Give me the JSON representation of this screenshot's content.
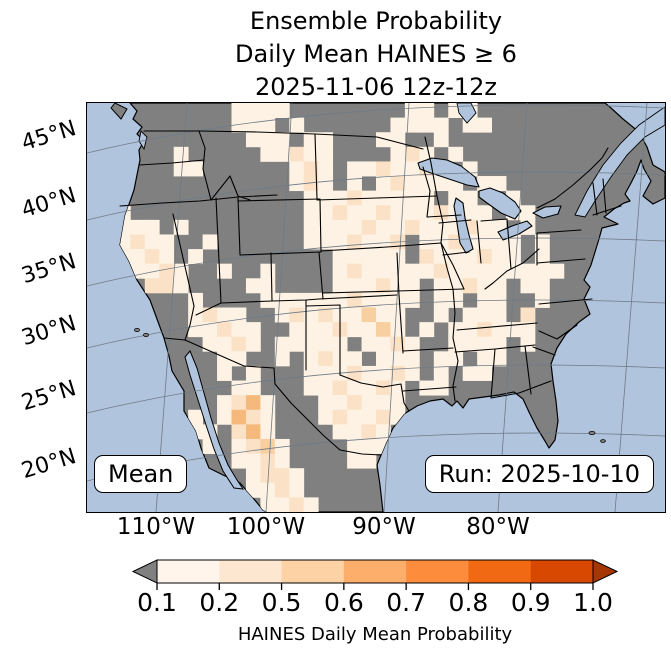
{
  "title": {
    "lines": [
      "Ensemble Probability",
      "Daily Mean HAINES ≥ 6",
      "2025-11-06 12z-12z"
    ]
  },
  "map": {
    "overlay_boxes": {
      "stat": "Mean",
      "run": "Run: 2025-10-10"
    },
    "axis": {
      "lat_labels": [
        "45°N",
        "40°N",
        "35°N",
        "30°N",
        "25°N",
        "20°N"
      ],
      "lon_labels": [
        "110°W",
        "100°W",
        "90°W",
        "80°W"
      ]
    },
    "colors": {
      "ocean": "#b0c4de",
      "masked_land": "#808080",
      "coastline": "#000000",
      "graticule": "#6f7a85"
    },
    "probability_grid": {
      "cols": 40,
      "rows": 28,
      "palette": {
        "1": "#fdf2e3",
        "2": "#fbe2c6",
        "3": "#f8cfa0",
        "4": "#f5b97b"
      },
      "legend": {
        ".": "< 0.1 (masked gray)",
        "1": "0.1-0.2",
        "2": "0.2-0.5",
        "3": "0.5-0.6",
        "4": "0.6-0.7"
      },
      "cells": [
        "..........1111........11.11.............",
        "..........111.1......1111.11............",
        "...........111.11...11..1...............",
        "......1.....11211....121.1..............",
        "......11......121.1121121.1.............",
        "..............121.1.121111.11...........",
        "...............111211111.11..1..........",
        "..1............1121121112111.11.........",
        "..111.1........11112112111211.1.........",
        "..1211..1......1112112.1121111.1........",
        "..1121.1.........11111.2111211.1........",
        "...1121..1..1....1211111211111111.......",
        "....221....11....111211.11211.11........",
        ".......1....11111121111.11.11..1........",
        ".......1211..121211311..1.111.2.........",
        ".......11211..11121131.1.112111.........",
        "........1121.11111.1121..1111.1.........",
        ".........11..1.1211.111.11.11...........",
        ".........1.1...11121121.1.11............",
        "..........11...1121121.11...............",
        ".........1241...112111..................",
        ".......1.1421...121121..................",
        ".......11.241....1121...................",
        "........1.1231....111...................",
        "..........1121....11....................",
        "...........1221.........................",
        "...........1121.........................",
        "............1121........................"
      ]
    }
  },
  "colorbar": {
    "label": "HAINES Daily Mean Probability",
    "ticks": [
      "0.1",
      "0.2",
      "0.5",
      "0.6",
      "0.7",
      "0.8",
      "0.9",
      "1.0"
    ],
    "segments": [
      "#fff5eb",
      "#fee7d1",
      "#fdd2a5",
      "#fdae6b",
      "#fd8d3c",
      "#f16913",
      "#d94801"
    ],
    "under_arrow": "#808080",
    "over_arrow": "#a63603"
  }
}
